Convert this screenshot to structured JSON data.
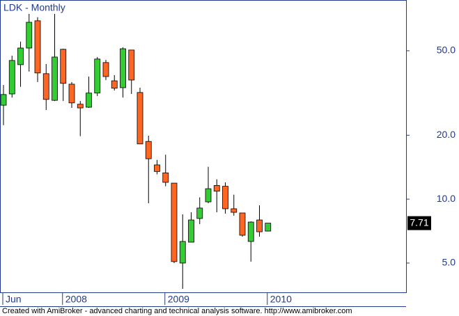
{
  "chart_data": {
    "type": "candlestick",
    "title": "LDK - Monthly",
    "categories": [
      "Jun",
      null,
      null,
      null,
      null,
      null,
      null,
      "2008",
      null,
      null,
      null,
      null,
      null,
      null,
      null,
      null,
      null,
      null,
      null,
      "2009",
      null,
      null,
      null,
      null,
      null,
      null,
      null,
      null,
      null,
      null,
      null,
      "2010"
    ],
    "open": [
      27.7,
      31.3,
      43.0,
      51.5,
      69.2,
      39.0,
      29.2,
      50.8,
      34.8,
      28.0,
      27.1,
      31.6,
      44.0,
      36.1,
      33.5,
      50.4,
      31.8,
      18.7,
      14.5,
      13.3,
      11.9,
      5.0,
      6.27,
      8.11,
      9.71,
      11.6,
      11.5,
      9.01,
      8.61,
      6.32,
      7.98,
      7.07
    ],
    "high": [
      34.5,
      47.4,
      55.2,
      74.6,
      71.9,
      43.3,
      74.6,
      51.1,
      35.6,
      29.0,
      37.8,
      46.7,
      45.3,
      38.4,
      51.9,
      50.4,
      33.5,
      19.9,
      15.3,
      16.2,
      11.9,
      8.48,
      8.67,
      10.2,
      14.2,
      12.4,
      12.0,
      10.5,
      8.61,
      7.86,
      9.35,
      7.71
    ],
    "low": [
      22.3,
      30.1,
      33.8,
      39.9,
      35.6,
      26.3,
      29.0,
      29.0,
      26.9,
      19.8,
      26.9,
      30.6,
      36.4,
      32.5,
      30.1,
      31.3,
      18.2,
      9.57,
      13.1,
      11.5,
      5.0,
      3.78,
      6.27,
      7.63,
      9.57,
      8.67,
      8.55,
      8.36,
      6.66,
      5.08,
      6.66,
      7.07
    ],
    "close": [
      31.1,
      45.0,
      51.5,
      68.1,
      39.3,
      29.5,
      46.7,
      35.1,
      28.4,
      26.9,
      31.6,
      45.7,
      37.8,
      33.3,
      51.1,
      36.4,
      18.2,
      15.5,
      13.5,
      12.0,
      5.08,
      6.32,
      7.98,
      9.08,
      11.2,
      10.9,
      9.01,
      8.67,
      6.76,
      7.8,
      7.02,
      7.71
    ],
    "up_color": "#33cc33",
    "down_color": "#ff6622",
    "log_scale": true,
    "ylim": [
      3.64,
      86.7
    ],
    "yticks": [
      {
        "value": 5,
        "label": "5.0"
      },
      {
        "value": 10,
        "label": "10.0"
      },
      {
        "value": 20,
        "label": "20.0"
      },
      {
        "value": 50,
        "label": "50.0"
      }
    ],
    "caption": "Created with AmiBroker - advanced charting and technical analysis software. http://www.amibroker.com"
  }
}
